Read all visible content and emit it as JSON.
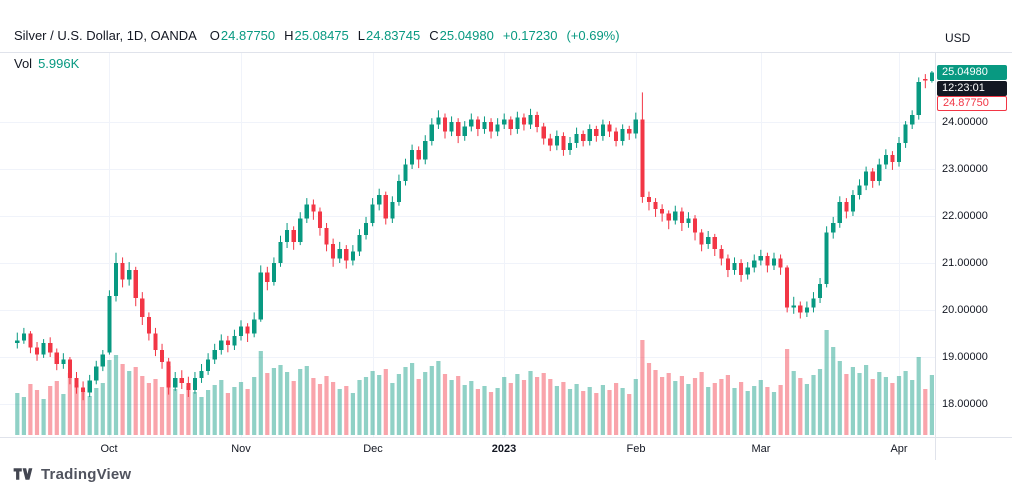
{
  "header": {
    "title": "Silver / U.S. Dollar, 1D, OANDA",
    "ohlc": {
      "o_label": "O",
      "o": "24.87750",
      "h_label": "H",
      "h": "25.08475",
      "l_label": "L",
      "l": "24.83745",
      "c_label": "C",
      "c": "25.04980"
    },
    "change": "+0.17230",
    "change_pct": "(+0.69%)",
    "currency_label": "USD"
  },
  "legend": {
    "vol_label": "Vol",
    "vol_value": "5.996K"
  },
  "price_axis": {
    "ticks": [
      {
        "value": 24,
        "label": "24.00000"
      },
      {
        "value": 23,
        "label": "23.00000"
      },
      {
        "value": 22,
        "label": "22.00000"
      },
      {
        "value": 21,
        "label": "21.00000"
      },
      {
        "value": 20,
        "label": "20.00000"
      },
      {
        "value": 19,
        "label": "19.00000"
      },
      {
        "value": 18,
        "label": "18.00000"
      }
    ],
    "badges": {
      "last": "25.04980",
      "countdown": "12:23:01",
      "open": "24.87750"
    }
  },
  "time_axis": {
    "ticks": [
      {
        "label": "Oct",
        "index": 14
      },
      {
        "label": "Nov",
        "index": 34
      },
      {
        "label": "Dec",
        "index": 54
      },
      {
        "label": "2023",
        "index": 74,
        "year": true
      },
      {
        "label": "Feb",
        "index": 94
      },
      {
        "label": "Mar",
        "index": 113
      },
      {
        "label": "Apr",
        "index": 134
      }
    ]
  },
  "footer": {
    "brand": "TradingView"
  },
  "colors": {
    "up": "#089981",
    "down": "#f23645",
    "vol_up": "rgba(8,153,129,0.45)",
    "vol_down": "rgba(242,54,69,0.45)",
    "grid": "#f0f3fa",
    "border": "#e0e3eb",
    "countdown_bg": "#131722",
    "text": "#131722"
  },
  "chart_data": {
    "type": "candlestick",
    "title": "Silver / U.S. Dollar, 1D, OANDA",
    "ylabel": "USD",
    "y_ticks": [
      18,
      19,
      20,
      21,
      22,
      23,
      24
    ],
    "ylim": [
      17.3,
      25.45
    ],
    "x_tick_labels": [
      "Oct",
      "Nov",
      "Dec",
      "2023",
      "Feb",
      "Mar",
      "Apr"
    ],
    "x_tick_indices": [
      14,
      34,
      54,
      74,
      94,
      113,
      134
    ],
    "last": {
      "open": 24.8775,
      "high": 25.08475,
      "low": 24.83745,
      "close": 25.0498,
      "change": 0.1723,
      "change_pct": 0.69,
      "volume": "5.996K"
    },
    "volume_unit": "K",
    "ohlc": [
      [
        19.3,
        19.52,
        19.18,
        19.35
      ],
      [
        19.35,
        19.62,
        19.28,
        19.5
      ],
      [
        19.5,
        19.55,
        19.08,
        19.2
      ],
      [
        19.2,
        19.32,
        18.92,
        19.05
      ],
      [
        19.05,
        19.38,
        18.98,
        19.3
      ],
      [
        19.3,
        19.42,
        19.0,
        19.1
      ],
      [
        19.1,
        19.18,
        18.72,
        18.85
      ],
      [
        18.85,
        19.08,
        18.75,
        18.95
      ],
      [
        18.95,
        19.0,
        18.42,
        18.55
      ],
      [
        18.55,
        18.68,
        18.22,
        18.35
      ],
      [
        18.35,
        18.48,
        18.08,
        18.25
      ],
      [
        18.25,
        18.62,
        18.15,
        18.5
      ],
      [
        18.5,
        18.92,
        18.42,
        18.8
      ],
      [
        18.8,
        19.15,
        18.7,
        19.05
      ],
      [
        19.1,
        20.42,
        19.05,
        20.3
      ],
      [
        20.3,
        21.22,
        20.18,
        21.0
      ],
      [
        21.0,
        21.12,
        20.48,
        20.65
      ],
      [
        20.65,
        21.02,
        20.52,
        20.85
      ],
      [
        20.85,
        20.92,
        20.08,
        20.25
      ],
      [
        20.25,
        20.38,
        19.68,
        19.85
      ],
      [
        19.85,
        19.95,
        19.35,
        19.5
      ],
      [
        19.5,
        19.62,
        19.02,
        19.15
      ],
      [
        19.15,
        19.28,
        18.75,
        18.9
      ],
      [
        18.9,
        18.98,
        18.2,
        18.35
      ],
      [
        18.35,
        18.68,
        18.28,
        18.55
      ],
      [
        18.55,
        18.72,
        18.32,
        18.45
      ],
      [
        18.45,
        18.58,
        18.15,
        18.3
      ],
      [
        18.3,
        18.68,
        18.22,
        18.55
      ],
      [
        18.55,
        18.85,
        18.45,
        18.7
      ],
      [
        18.7,
        19.08,
        18.62,
        18.95
      ],
      [
        18.95,
        19.28,
        18.85,
        19.15
      ],
      [
        19.15,
        19.48,
        19.05,
        19.35
      ],
      [
        19.35,
        19.45,
        19.1,
        19.25
      ],
      [
        19.25,
        19.58,
        19.15,
        19.45
      ],
      [
        19.45,
        19.78,
        19.35,
        19.65
      ],
      [
        19.65,
        19.72,
        19.32,
        19.5
      ],
      [
        19.5,
        19.95,
        19.42,
        19.8
      ],
      [
        19.8,
        20.95,
        19.75,
        20.8
      ],
      [
        20.8,
        20.92,
        20.42,
        20.6
      ],
      [
        20.6,
        21.12,
        20.52,
        21.0
      ],
      [
        21.0,
        21.58,
        20.92,
        21.45
      ],
      [
        21.45,
        21.85,
        21.32,
        21.7
      ],
      [
        21.7,
        21.78,
        21.28,
        21.45
      ],
      [
        21.45,
        22.08,
        21.38,
        21.95
      ],
      [
        21.95,
        22.38,
        21.85,
        22.25
      ],
      [
        22.25,
        22.35,
        21.92,
        22.1
      ],
      [
        22.1,
        22.18,
        21.58,
        21.75
      ],
      [
        21.75,
        21.85,
        21.25,
        21.4
      ],
      [
        21.4,
        21.52,
        20.92,
        21.1
      ],
      [
        21.1,
        21.45,
        21.0,
        21.3
      ],
      [
        21.3,
        21.38,
        20.88,
        21.05
      ],
      [
        21.05,
        21.38,
        20.95,
        21.25
      ],
      [
        21.25,
        21.72,
        21.15,
        21.6
      ],
      [
        21.6,
        21.98,
        21.5,
        21.85
      ],
      [
        21.85,
        22.38,
        21.78,
        22.25
      ],
      [
        22.25,
        22.58,
        22.12,
        22.45
      ],
      [
        22.45,
        22.52,
        21.82,
        21.95
      ],
      [
        21.95,
        22.42,
        21.85,
        22.3
      ],
      [
        22.3,
        22.88,
        22.22,
        22.75
      ],
      [
        22.75,
        23.22,
        22.65,
        23.1
      ],
      [
        23.1,
        23.52,
        23.0,
        23.4
      ],
      [
        23.4,
        23.48,
        23.02,
        23.2
      ],
      [
        23.2,
        23.72,
        23.1,
        23.6
      ],
      [
        23.6,
        24.08,
        23.5,
        23.95
      ],
      [
        23.95,
        24.25,
        23.85,
        24.1
      ],
      [
        24.1,
        24.18,
        23.65,
        23.8
      ],
      [
        23.8,
        24.12,
        23.7,
        24.0
      ],
      [
        24.0,
        24.08,
        23.55,
        23.7
      ],
      [
        23.7,
        24.02,
        23.6,
        23.9
      ],
      [
        23.9,
        24.18,
        23.8,
        24.05
      ],
      [
        24.05,
        24.12,
        23.7,
        23.85
      ],
      [
        23.85,
        24.12,
        23.75,
        24.0
      ],
      [
        24.0,
        24.08,
        23.65,
        23.8
      ],
      [
        23.8,
        24.08,
        23.7,
        23.95
      ],
      [
        23.95,
        24.18,
        23.85,
        24.05
      ],
      [
        24.05,
        24.12,
        23.72,
        23.85
      ],
      [
        23.85,
        24.22,
        23.75,
        24.1
      ],
      [
        24.1,
        24.18,
        23.82,
        23.95
      ],
      [
        23.95,
        24.28,
        23.85,
        24.15
      ],
      [
        24.15,
        24.22,
        23.78,
        23.9
      ],
      [
        23.9,
        23.98,
        23.52,
        23.65
      ],
      [
        23.65,
        23.75,
        23.38,
        23.5
      ],
      [
        23.5,
        23.82,
        23.4,
        23.7
      ],
      [
        23.7,
        23.78,
        23.28,
        23.4
      ],
      [
        23.4,
        23.68,
        23.3,
        23.55
      ],
      [
        23.55,
        23.88,
        23.45,
        23.75
      ],
      [
        23.75,
        23.82,
        23.48,
        23.6
      ],
      [
        23.6,
        23.95,
        23.5,
        23.85
      ],
      [
        23.85,
        23.92,
        23.58,
        23.7
      ],
      [
        23.7,
        24.05,
        23.6,
        23.95
      ],
      [
        23.95,
        24.02,
        23.68,
        23.8
      ],
      [
        23.8,
        23.88,
        23.48,
        23.6
      ],
      [
        23.6,
        23.95,
        23.5,
        23.85
      ],
      [
        23.85,
        23.92,
        23.62,
        23.75
      ],
      [
        23.75,
        24.2,
        23.65,
        24.05
      ],
      [
        24.05,
        24.63,
        22.28,
        22.4
      ],
      [
        22.4,
        22.52,
        22.12,
        22.3
      ],
      [
        22.3,
        22.38,
        21.98,
        22.15
      ],
      [
        22.15,
        22.25,
        21.88,
        22.05
      ],
      [
        22.05,
        22.12,
        21.72,
        21.9
      ],
      [
        21.9,
        22.22,
        21.82,
        22.1
      ],
      [
        22.1,
        22.18,
        21.68,
        21.85
      ],
      [
        21.85,
        22.08,
        21.75,
        21.95
      ],
      [
        21.95,
        22.02,
        21.48,
        21.65
      ],
      [
        21.65,
        21.72,
        21.25,
        21.4
      ],
      [
        21.4,
        21.68,
        21.3,
        21.55
      ],
      [
        21.55,
        21.62,
        21.15,
        21.3
      ],
      [
        21.3,
        21.38,
        20.95,
        21.1
      ],
      [
        21.1,
        21.18,
        20.7,
        20.85
      ],
      [
        20.85,
        21.12,
        20.75,
        21.0
      ],
      [
        21.0,
        21.08,
        20.6,
        20.75
      ],
      [
        20.75,
        21.02,
        20.65,
        20.9
      ],
      [
        20.9,
        21.18,
        20.8,
        21.05
      ],
      [
        21.05,
        21.28,
        20.95,
        21.15
      ],
      [
        21.15,
        21.22,
        20.8,
        20.95
      ],
      [
        20.95,
        21.22,
        20.85,
        21.1
      ],
      [
        21.1,
        21.18,
        20.75,
        20.9
      ],
      [
        20.9,
        20.95,
        19.95,
        20.05
      ],
      [
        20.05,
        20.28,
        19.92,
        20.1
      ],
      [
        20.1,
        20.18,
        19.82,
        19.95
      ],
      [
        19.95,
        20.18,
        19.85,
        20.05
      ],
      [
        20.05,
        20.38,
        19.95,
        20.25
      ],
      [
        20.25,
        20.68,
        20.15,
        20.55
      ],
      [
        20.55,
        21.78,
        20.48,
        21.65
      ],
      [
        21.65,
        21.98,
        21.52,
        21.85
      ],
      [
        21.85,
        22.42,
        21.75,
        22.3
      ],
      [
        22.3,
        22.38,
        21.95,
        22.1
      ],
      [
        22.1,
        22.55,
        22.0,
        22.45
      ],
      [
        22.45,
        22.78,
        22.35,
        22.65
      ],
      [
        22.65,
        23.05,
        22.55,
        22.95
      ],
      [
        22.95,
        23.02,
        22.6,
        22.75
      ],
      [
        22.75,
        23.22,
        22.65,
        23.1
      ],
      [
        23.1,
        23.42,
        23.0,
        23.3
      ],
      [
        23.3,
        23.38,
        22.98,
        23.15
      ],
      [
        23.15,
        23.68,
        23.05,
        23.55
      ],
      [
        23.55,
        24.02,
        23.45,
        23.95
      ],
      [
        23.95,
        24.25,
        23.85,
        24.15
      ],
      [
        24.15,
        24.95,
        24.05,
        24.85
      ],
      [
        24.92,
        25.02,
        24.72,
        24.88
      ],
      [
        24.8775,
        25.08475,
        24.83745,
        25.0498
      ]
    ],
    "volume_k": [
      4.2,
      3.8,
      5.1,
      4.5,
      3.6,
      4.9,
      5.4,
      4.1,
      6.2,
      5.0,
      4.4,
      3.9,
      4.7,
      5.2,
      7.5,
      8.0,
      7.1,
      6.4,
      6.8,
      5.9,
      5.2,
      5.6,
      4.8,
      6.9,
      4.6,
      4.1,
      4.9,
      4.3,
      3.8,
      4.5,
      5.0,
      5.5,
      4.2,
      4.8,
      5.3,
      4.6,
      5.8,
      8.4,
      6.2,
      6.7,
      7.0,
      6.3,
      5.4,
      6.6,
      6.9,
      5.7,
      5.1,
      5.9,
      5.3,
      4.6,
      4.9,
      4.2,
      5.5,
      5.8,
      6.4,
      6.0,
      6.6,
      5.2,
      6.1,
      6.8,
      7.2,
      5.6,
      6.3,
      6.9,
      7.4,
      6.1,
      5.5,
      5.9,
      5.0,
      5.4,
      4.6,
      4.9,
      4.3,
      4.7,
      5.8,
      5.2,
      6.1,
      5.5,
      6.4,
      5.8,
      6.2,
      5.6,
      4.9,
      5.3,
      4.6,
      5.1,
      4.4,
      4.8,
      4.2,
      5.0,
      4.5,
      5.2,
      4.7,
      4.1,
      5.6,
      9.5,
      7.2,
      6.5,
      5.8,
      6.2,
      5.4,
      5.9,
      5.1,
      5.7,
      6.3,
      4.8,
      5.2,
      5.6,
      6.0,
      4.7,
      5.3,
      4.4,
      4.9,
      5.5,
      4.8,
      4.3,
      5.0,
      8.6,
      6.4,
      5.7,
      5.1,
      6.0,
      6.6,
      10.5,
      8.8,
      7.4,
      6.1,
      6.8,
      6.2,
      7.0,
      5.6,
      6.3,
      5.8,
      5.2,
      5.9,
      6.4,
      5.5,
      7.8,
      4.6,
      6.0
    ]
  }
}
